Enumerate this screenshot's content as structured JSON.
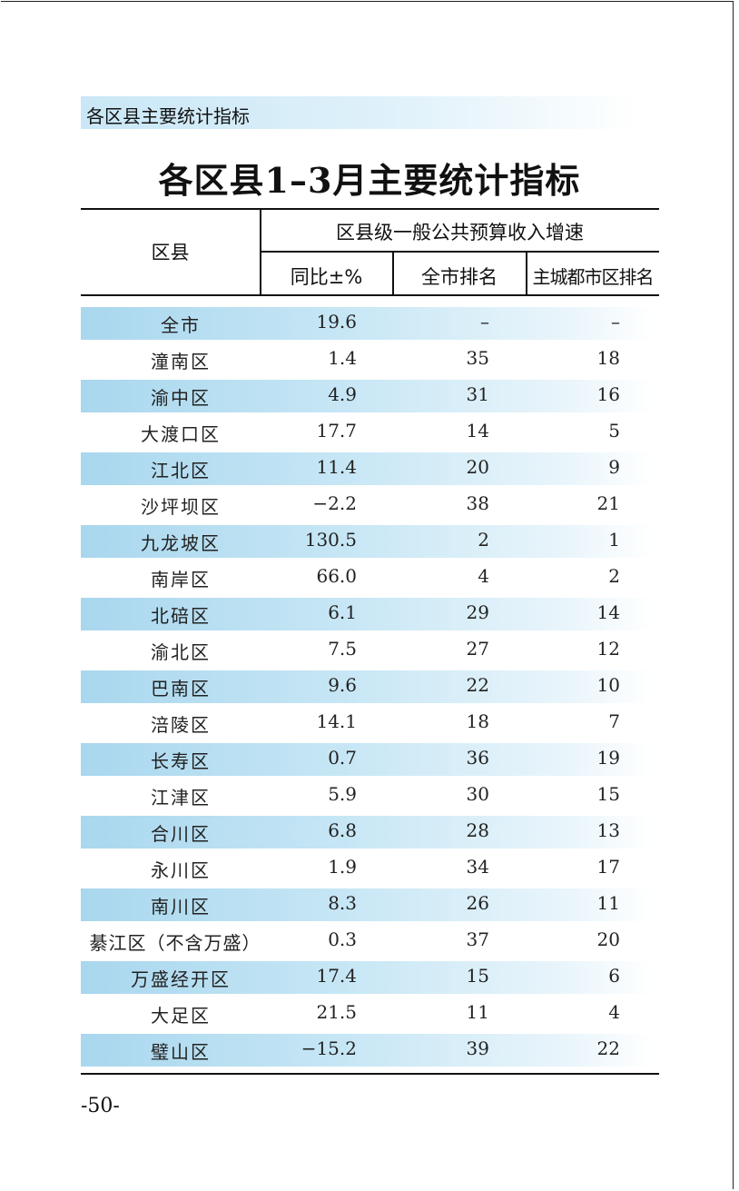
{
  "section_header": "各区县主要统计指标",
  "title": "各区县1–3月主要统计指标",
  "table": {
    "col_district": "区县",
    "group_header": "区县级一般公共预算收入增速",
    "col_yoy": "同比±%",
    "col_city_rank": "全市排名",
    "col_main_rank": "主城都市区排名",
    "rows": [
      {
        "name": "全市",
        "yoy": "19.6",
        "city_rank": "–",
        "main_rank": "–"
      },
      {
        "name": "潼南区",
        "yoy": "1.4",
        "city_rank": "35",
        "main_rank": "18"
      },
      {
        "name": "渝中区",
        "yoy": "4.9",
        "city_rank": "31",
        "main_rank": "16"
      },
      {
        "name": "大渡口区",
        "yoy": "17.7",
        "city_rank": "14",
        "main_rank": "5"
      },
      {
        "name": "江北区",
        "yoy": "11.4",
        "city_rank": "20",
        "main_rank": "9"
      },
      {
        "name": "沙坪坝区",
        "yoy": "−2.2",
        "city_rank": "38",
        "main_rank": "21"
      },
      {
        "name": "九龙坡区",
        "yoy": "130.5",
        "city_rank": "2",
        "main_rank": "1"
      },
      {
        "name": "南岸区",
        "yoy": "66.0",
        "city_rank": "4",
        "main_rank": "2"
      },
      {
        "name": "北碚区",
        "yoy": "6.1",
        "city_rank": "29",
        "main_rank": "14"
      },
      {
        "name": "渝北区",
        "yoy": "7.5",
        "city_rank": "27",
        "main_rank": "12"
      },
      {
        "name": "巴南区",
        "yoy": "9.6",
        "city_rank": "22",
        "main_rank": "10"
      },
      {
        "name": "涪陵区",
        "yoy": "14.1",
        "city_rank": "18",
        "main_rank": "7"
      },
      {
        "name": "长寿区",
        "yoy": "0.7",
        "city_rank": "36",
        "main_rank": "19"
      },
      {
        "name": "江津区",
        "yoy": "5.9",
        "city_rank": "30",
        "main_rank": "15"
      },
      {
        "name": "合川区",
        "yoy": "6.8",
        "city_rank": "28",
        "main_rank": "13"
      },
      {
        "name": "永川区",
        "yoy": "1.9",
        "city_rank": "34",
        "main_rank": "17"
      },
      {
        "name": "南川区",
        "yoy": "8.3",
        "city_rank": "26",
        "main_rank": "11"
      },
      {
        "name": "綦江区（不含万盛）",
        "yoy": "0.3",
        "city_rank": "37",
        "main_rank": "20"
      },
      {
        "name": "万盛经开区",
        "yoy": "17.4",
        "city_rank": "15",
        "main_rank": "6"
      },
      {
        "name": "大足区",
        "yoy": "21.5",
        "city_rank": "11",
        "main_rank": "4"
      },
      {
        "name": "璧山区",
        "yoy": "−15.2",
        "city_rank": "39",
        "main_rank": "22"
      }
    ]
  },
  "page_number": "-50-"
}
